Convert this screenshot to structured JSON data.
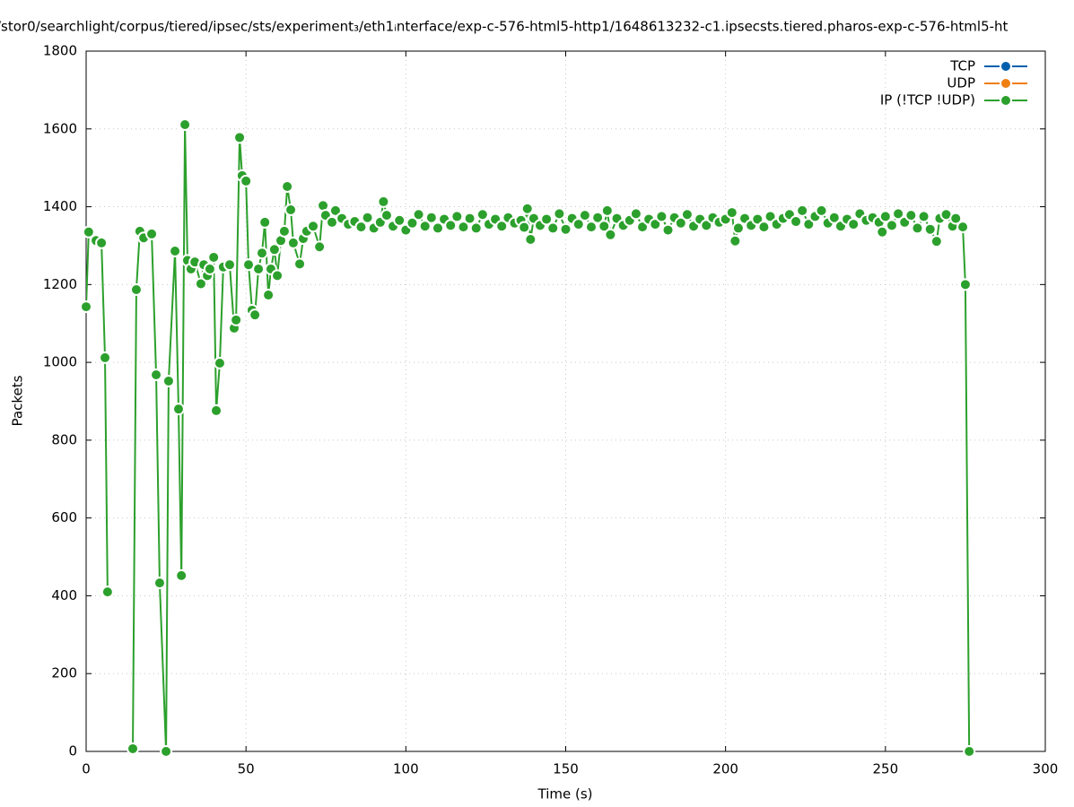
{
  "chart_data": {
    "type": "line",
    "title": "/stor0/searchlight/corpus/tiered/ipsec/sts/experiment₃/eth1ᵢnterface/exp-c-576-html5-http1/1648613232-c1.ipsecsts.tiered.pharos-exp-c-576-html5-ht",
    "x_label": "Time (s)",
    "y_label": "Packets",
    "xlim": [
      0,
      300
    ],
    "xticks": [
      0,
      50,
      100,
      150,
      200,
      250,
      300
    ],
    "ylim": [
      0,
      1800
    ],
    "yticks": [
      0,
      200,
      400,
      600,
      800,
      1000,
      1200,
      1400,
      1600,
      1800
    ],
    "grid": true,
    "legend": "top-right",
    "series": [
      {
        "name": "TCP",
        "color": "#0060ad",
        "x": [],
        "values": []
      },
      {
        "name": "UDP",
        "color": "#f07f12",
        "x": [],
        "values": []
      },
      {
        "name": "IP (!TCP  !UDP)",
        "color": "#2ca02c",
        "x": [
          0,
          0.8,
          3.1,
          4.8,
          5.9,
          6.7,
          10,
          14.6,
          15.7,
          16.8,
          18,
          20.5,
          21.9,
          23,
          25,
          25.8,
          27.8,
          28.9,
          29.8,
          30.9,
          31.7,
          32.8,
          34,
          35.9,
          36.8,
          37.9,
          38.7,
          39.9,
          40.7,
          41.8,
          42.9,
          44.9,
          46.3,
          46.9,
          48,
          48.8,
          50,
          50.8,
          51.9,
          52.8,
          53.9,
          55,
          55.9,
          57,
          57.8,
          58.9,
          59.8,
          60.9,
          62,
          62.9,
          64,
          64.8,
          66.8,
          67.9,
          69,
          71,
          73,
          74.1,
          74.9,
          76.9,
          78,
          80,
          82,
          84,
          86,
          88,
          90,
          92,
          93,
          94,
          96,
          98,
          100,
          102,
          104,
          106,
          108,
          110,
          112,
          114,
          116,
          118,
          120,
          122,
          124,
          126,
          128,
          130,
          132,
          134,
          136,
          137,
          138,
          139,
          140,
          142,
          144,
          146,
          148,
          150,
          152,
          154,
          156,
          158,
          160,
          162,
          163,
          164,
          166,
          168,
          170,
          172,
          174,
          176,
          178,
          180,
          182,
          184,
          186,
          188,
          190,
          192,
          194,
          196,
          198,
          200,
          202,
          203,
          204,
          206,
          208,
          210,
          212,
          214,
          216,
          218,
          220,
          222,
          224,
          226,
          228,
          230,
          232,
          234,
          236,
          238,
          240,
          242,
          244,
          246,
          248,
          249,
          250,
          252,
          254,
          256,
          258,
          260,
          262,
          264,
          266,
          267,
          269,
          271,
          272,
          274.2,
          275,
          276.2
        ],
        "values": [
          1143,
          1335,
          1313,
          1307,
          1012,
          410,
          null,
          7,
          1187,
          1337,
          1320,
          1330,
          968,
          433,
          0,
          952,
          1286,
          880,
          452,
          1611,
          1262,
          1240,
          1258,
          1202,
          1251,
          1223,
          1240,
          1270,
          876,
          998,
          1245,
          1251,
          1088,
          1109,
          1578,
          1480,
          1466,
          1251,
          1134,
          1122,
          1240,
          1281,
          1360,
          1173,
          1240,
          1290,
          1223,
          1313,
          1337,
          1452,
          1392,
          1307,
          1253,
          1318,
          1337,
          1350,
          1297,
          1403,
          1378,
          1360,
          1390,
          1370,
          1355,
          1362,
          1348,
          1372,
          1345,
          1360,
          1413,
          1378,
          1350,
          1365,
          1340,
          1358,
          1380,
          1350,
          1372,
          1345,
          1368,
          1352,
          1375,
          1348,
          1370,
          1345,
          1380,
          1355,
          1368,
          1350,
          1372,
          1358,
          1365,
          1347,
          1395,
          1316,
          1370,
          1352,
          1368,
          1345,
          1382,
          1342,
          1370,
          1355,
          1378,
          1348,
          1372,
          1350,
          1390,
          1328,
          1370,
          1352,
          1365,
          1382,
          1348,
          1368,
          1355,
          1375,
          1340,
          1372,
          1358,
          1380,
          1350,
          1368,
          1352,
          1372,
          1360,
          1368,
          1385,
          1312,
          1345,
          1370,
          1352,
          1368,
          1348,
          1375,
          1355,
          1370,
          1380,
          1362,
          1390,
          1355,
          1375,
          1390,
          1358,
          1372,
          1350,
          1368,
          1355,
          1382,
          1365,
          1372,
          1360,
          1335,
          1375,
          1352,
          1382,
          1360,
          1378,
          1345,
          1375,
          1342,
          1311,
          1370,
          1380,
          1350,
          1370,
          1348,
          1200,
          0
        ]
      }
    ]
  }
}
